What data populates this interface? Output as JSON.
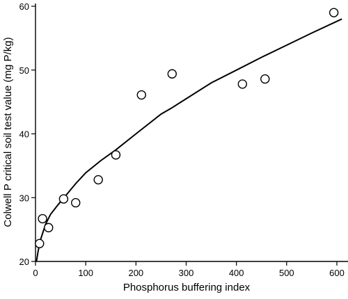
{
  "chart_data": {
    "type": "scatter",
    "title": "",
    "xlabel": "Phosphorus buffering index",
    "ylabel": "Colwell P critical soil test value (mg P/kg)",
    "xlim": [
      0,
      620
    ],
    "ylim": [
      20,
      61
    ],
    "xticks": [
      0,
      100,
      200,
      300,
      400,
      500,
      600
    ],
    "yticks": [
      20,
      30,
      40,
      50,
      60
    ],
    "grid": false,
    "legend": "none",
    "series": [
      {
        "kind": "points",
        "marker": "open-circle",
        "x": [
          8,
          14,
          26,
          56,
          80,
          125,
          160,
          211,
          272,
          412,
          457,
          594
        ],
        "y": [
          22.8,
          26.7,
          25.3,
          29.8,
          29.2,
          32.8,
          36.7,
          46.1,
          49.4,
          47.8,
          48.6,
          59.0
        ]
      },
      {
        "kind": "fitted-curve",
        "x": [
          2,
          5,
          10,
          20,
          30,
          45,
          60,
          80,
          100,
          130,
          160,
          200,
          250,
          270,
          300,
          350,
          400,
          450,
          500,
          550,
          610
        ],
        "y": [
          20.0,
          21.5,
          23.4,
          25.8,
          27.4,
          28.9,
          30.3,
          32.2,
          33.9,
          35.8,
          37.5,
          40.0,
          43.1,
          44.0,
          45.5,
          48.0,
          50.0,
          52.0,
          53.9,
          55.8,
          58.0
        ]
      }
    ]
  }
}
